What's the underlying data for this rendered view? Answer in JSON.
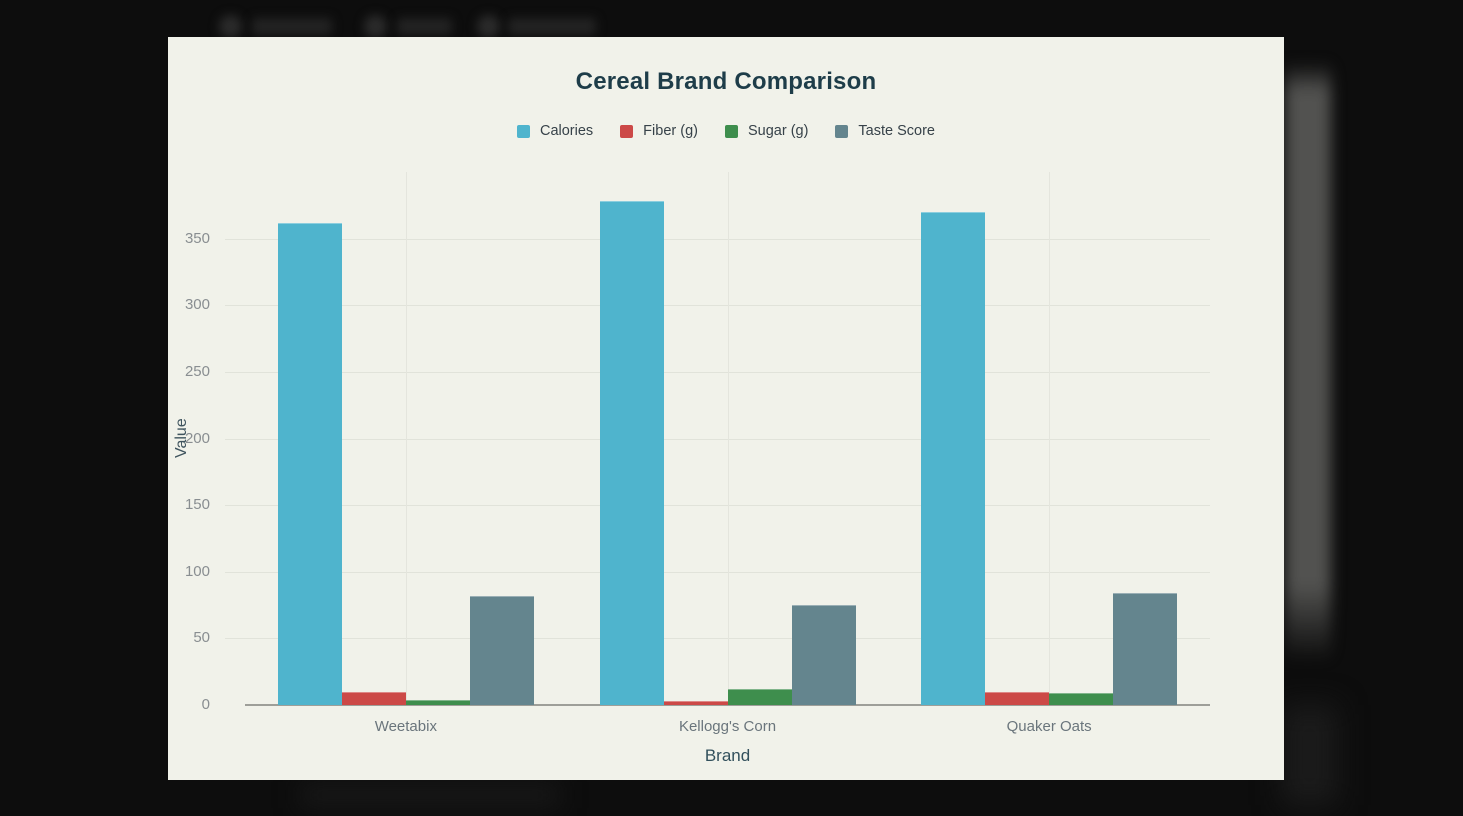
{
  "chart_data": {
    "type": "bar",
    "title": "Cereal Brand Comparison",
    "xlabel": "Brand",
    "ylabel": "Value",
    "categories": [
      "Weetabix",
      "Kellogg's Corn",
      "Quaker Oats"
    ],
    "series": [
      {
        "name": "Calories",
        "color": "#4fb4cd",
        "values": [
          362,
          378,
          370
        ]
      },
      {
        "name": "Fiber (g)",
        "color": "#cc4947",
        "values": [
          10,
          3,
          10
        ]
      },
      {
        "name": "Sugar (g)",
        "color": "#3e8e4d",
        "values": [
          4,
          12,
          9
        ]
      },
      {
        "name": "Taste Score",
        "color": "#64858e",
        "values": [
          82,
          75,
          84
        ]
      }
    ],
    "ylim": [
      0,
      400
    ],
    "yticks": [
      0,
      50,
      100,
      150,
      200,
      250,
      300,
      350
    ],
    "grid": true,
    "legend_position": "top"
  }
}
